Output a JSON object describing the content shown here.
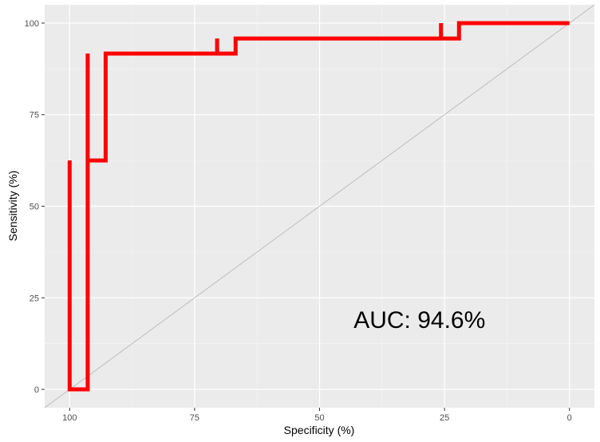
{
  "chart_data": {
    "type": "line",
    "title": "",
    "xlabel": "Specificity (%)",
    "ylabel": "Sensitivity (%)",
    "x_reversed": true,
    "xlim": [
      105,
      -5
    ],
    "ylim": [
      -5,
      105
    ],
    "x_ticks": [
      100,
      75,
      50,
      25,
      0
    ],
    "y_ticks": [
      0,
      25,
      50,
      75,
      100
    ],
    "x_tick_labels": [
      "100",
      "75",
      "50",
      "25",
      "0"
    ],
    "y_tick_labels": [
      "0",
      "25",
      "50",
      "75",
      "100"
    ],
    "grid": true,
    "background": "#ebebeb",
    "series": [
      {
        "color": "#ff0000",
        "points": [
          {
            "x": 100,
            "y": 62.5
          },
          {
            "x": 100,
            "y": 0
          },
          {
            "x": 96.4,
            "y": 0
          },
          {
            "x": 96.4,
            "y": 91.7
          },
          {
            "x": 96.4,
            "y": 62.5
          },
          {
            "x": 92.8,
            "y": 62.5
          },
          {
            "x": 92.8,
            "y": 91.7
          },
          {
            "x": 70.5,
            "y": 91.7
          },
          {
            "x": 70.5,
            "y": 95.8
          },
          {
            "x": 70.5,
            "y": 91.7
          },
          {
            "x": 66.8,
            "y": 91.7
          },
          {
            "x": 66.8,
            "y": 95.8
          },
          {
            "x": 25.7,
            "y": 95.8
          },
          {
            "x": 25.7,
            "y": 100
          },
          {
            "x": 25.7,
            "y": 95.8
          },
          {
            "x": 22.1,
            "y": 95.8
          },
          {
            "x": 22.1,
            "y": 100
          },
          {
            "x": 0,
            "y": 100
          }
        ]
      }
    ],
    "reference_line": {
      "from": [
        100,
        0
      ],
      "to": [
        0,
        100
      ],
      "color": "#bdbdbd"
    },
    "annotations": [
      {
        "text": "AUC: 94.6%",
        "x": 30,
        "y": 19
      }
    ]
  }
}
